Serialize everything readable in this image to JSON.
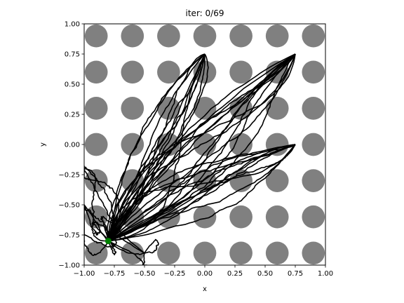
{
  "chart_data": {
    "type": "line",
    "title": "iter: 0/69",
    "xlabel": "x",
    "ylabel": "y",
    "xlim": [
      -1.0,
      1.0
    ],
    "ylim": [
      -1.0,
      1.0
    ],
    "xticks": [
      "−1.00",
      "−0.75",
      "−0.50",
      "−0.25",
      "0.00",
      "0.25",
      "0.50",
      "0.75",
      "1.00"
    ],
    "yticks": [
      "−1.00",
      "−0.75",
      "−0.50",
      "−0.25",
      "0.00",
      "0.25",
      "0.50",
      "0.75",
      "1.00"
    ],
    "grid": false,
    "obstacles": {
      "color": "#808080",
      "radius": 0.095,
      "x": [
        -0.9,
        -0.6,
        -0.3,
        0.0,
        0.3,
        0.6,
        0.9
      ],
      "y": [
        -0.9,
        -0.6,
        -0.3,
        0.0,
        0.3,
        0.6,
        0.9
      ]
    },
    "start": {
      "x": -0.8,
      "y": -0.8,
      "color": "#008000"
    },
    "trajectories": {
      "color": "#000000",
      "targets": [
        {
          "x": 0.75,
          "y": 0.75
        },
        {
          "x": 0.0,
          "y": 0.75
        },
        {
          "x": 0.75,
          "y": 0.0
        },
        {
          "x": -1.0,
          "y": -0.5
        },
        {
          "x": -1.0,
          "y": -0.2
        },
        {
          "x": -0.5,
          "y": -0.9
        }
      ]
    }
  }
}
